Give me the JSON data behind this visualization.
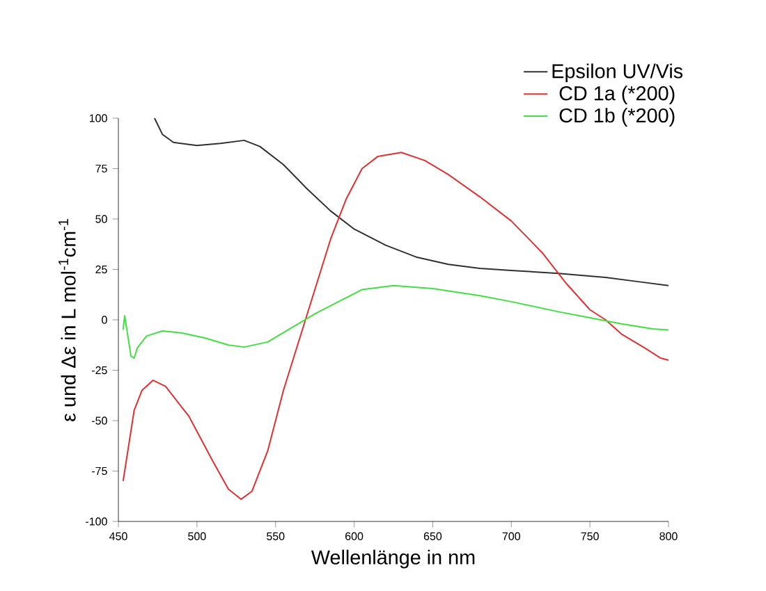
{
  "chart_data": {
    "type": "line",
    "xlabel": "Wellenlänge in nm",
    "ylabel": "ε und Δε in L mol$^{-1}$cm$^{-1}$",
    "xlim": [
      450,
      800
    ],
    "ylim": [
      -100,
      100
    ],
    "xticks": [
      450,
      500,
      550,
      600,
      650,
      700,
      750,
      800
    ],
    "yticks": [
      -100,
      -75,
      -50,
      -25,
      0,
      25,
      50,
      75,
      100
    ],
    "legend": "top right",
    "grid": false,
    "series": [
      {
        "name": "Epsilon UV/Vis",
        "color": "#303030",
        "x": [
          473,
          478,
          485,
          500,
          515,
          530,
          540,
          555,
          570,
          585,
          600,
          620,
          640,
          660,
          680,
          700,
          730,
          760,
          780,
          800
        ],
        "values": [
          100,
          92,
          88,
          86.5,
          87.5,
          89,
          86,
          77,
          65,
          54,
          45,
          37,
          31,
          27.5,
          25.5,
          24.5,
          23,
          21,
          19,
          17
        ]
      },
      {
        "name": "CD 1a (*200)",
        "color": "#e03030",
        "x": [
          453,
          455,
          460,
          465,
          472,
          480,
          495,
          510,
          520,
          528,
          535,
          545,
          555,
          565,
          575,
          585,
          595,
          605,
          615,
          630,
          645,
          660,
          680,
          700,
          720,
          735,
          750,
          760,
          770,
          785,
          795,
          800
        ],
        "values": [
          -80,
          -70,
          -45,
          -35,
          -30,
          -33,
          -48,
          -70,
          -84,
          -89,
          -85,
          -65,
          -35,
          -10,
          15,
          40,
          60,
          75,
          81,
          83,
          79,
          72,
          61,
          49,
          33,
          18,
          5,
          0,
          -7,
          -14,
          -19,
          -20
        ]
      },
      {
        "name": "CD 1b (*200)",
        "color": "#40e040",
        "x": [
          453,
          454,
          456,
          458,
          460,
          462,
          468,
          478,
          490,
          505,
          520,
          530,
          545,
          560,
          575,
          590,
          605,
          625,
          650,
          680,
          700,
          730,
          750,
          770,
          790,
          800
        ],
        "values": [
          -5,
          2,
          -8,
          -18,
          -19,
          -14,
          -8,
          -5.5,
          -6.5,
          -9,
          -12.5,
          -13.5,
          -11,
          -4,
          3,
          9,
          15,
          17,
          15.5,
          12,
          9,
          4,
          1,
          -2,
          -4.5,
          -5
        ]
      }
    ]
  }
}
